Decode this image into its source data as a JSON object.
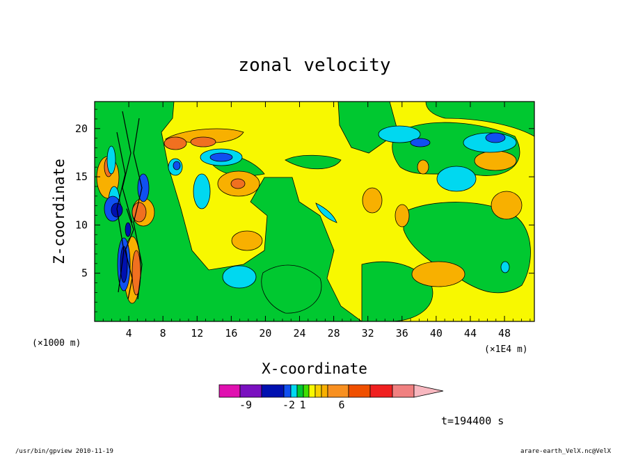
{
  "chart_data": {
    "type": "heatmap",
    "title": "zonal velocity",
    "xlabel": "X-coordinate",
    "ylabel": "Z-coordinate",
    "x_unit_label": "(×1E4 m)",
    "y_unit_label": "(×1000 m)",
    "xlim": [
      0,
      51.5
    ],
    "ylim": [
      0,
      22.8
    ],
    "x_ticks": [
      "4",
      "8",
      "12",
      "16",
      "20",
      "24",
      "28",
      "32",
      "36",
      "40",
      "44",
      "48"
    ],
    "y_ticks": [
      "5",
      "10",
      "15",
      "20"
    ],
    "time_label": "t=194400 s",
    "colorbar": {
      "colors": [
        "#e010b0",
        "#7a10c0",
        "#0010b0",
        "#1050f0",
        "#00d8f0",
        "#00c830",
        "#40e000",
        "#f8f800",
        "#f8d000",
        "#f8b000",
        "#f89020",
        "#f05000",
        "#f02020",
        "#f08080",
        "#f8b8c0"
      ],
      "tick_labels": [
        "-9",
        "-2",
        "1",
        "6"
      ],
      "extend": "max"
    },
    "features": [
      {
        "x": 16.5,
        "z": 14.2,
        "u": 3.0
      },
      {
        "x": 18.0,
        "z": 8.5,
        "u": 3.0
      },
      {
        "x": 16.5,
        "z": 4.5,
        "u": -2.0
      },
      {
        "x": 13.0,
        "z": 13.0,
        "u": -2.0
      },
      {
        "x": 12.0,
        "z": 19.3,
        "u": 3.0
      },
      {
        "x": 9.5,
        "z": 19.0,
        "u": 5.0
      },
      {
        "x": 14.0,
        "z": 17.0,
        "u": -4.0
      },
      {
        "x": 8.7,
        "z": 16.0,
        "u": -2.0
      },
      {
        "x": 36.5,
        "z": 19.5,
        "u": -2.0
      },
      {
        "x": 38.5,
        "z": 18.5,
        "u": -5.0
      },
      {
        "x": 45.0,
        "z": 19.0,
        "u": -2.0
      },
      {
        "x": 46.0,
        "z": 18.5,
        "u": -5.0
      },
      {
        "x": 41.5,
        "z": 15.5,
        "u": -2.0
      },
      {
        "x": 46.0,
        "z": 16.0,
        "u": 3.0
      },
      {
        "x": 45.5,
        "z": 12.5,
        "u": 3.0
      },
      {
        "x": 40.5,
        "z": 5.0,
        "u": 3.0
      },
      {
        "x": 47.5,
        "z": 5.5,
        "u": -1.0
      },
      {
        "x": 27.0,
        "z": 11.5,
        "u": -2.0
      },
      {
        "x": 32.0,
        "z": 12.5,
        "u": 3.0
      },
      {
        "x": 38.5,
        "z": 12.0,
        "u": 3.0
      },
      {
        "x": 3.7,
        "z": 15.0,
        "u": 6.0
      },
      {
        "x": 2.8,
        "z": 11.5,
        "u": -8.0
      },
      {
        "x": 5.5,
        "z": 11.5,
        "u": 6.0
      },
      {
        "x": 3.2,
        "z": 6.0,
        "u": -7.0
      },
      {
        "x": 5.2,
        "z": 5.5,
        "u": 7.0
      },
      {
        "x": 4.3,
        "z": 9.5,
        "u": -9.0
      }
    ]
  },
  "footer": {
    "left": "/usr/bin/gpview  2010-11-19",
    "right": "arare-earth_VelX.nc@VelX"
  }
}
